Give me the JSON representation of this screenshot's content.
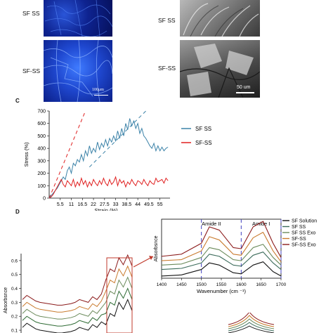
{
  "panel_a": {
    "top_label": "SF SS",
    "bottom_label": "SF-SS",
    "scale_bar": "100μm"
  },
  "panel_b": {
    "top_label": "SF SS",
    "bottom_label": "SF-SS",
    "scale_bar": "50 um"
  },
  "panel_c": {
    "letter": "C"
  },
  "panel_d": {
    "letter": "D"
  },
  "colors": {
    "fluor_bg": "#0a1a6a",
    "fluor_hi": "#3a6cff",
    "sem_bg": "#8a8a8a",
    "sf_ss_line": "#3b82a8",
    "sf_dash_ss_line": "#e02020",
    "box_red": "#c0392b"
  },
  "chart_data": [
    {
      "type": "line",
      "title": "",
      "xlabel": "Strain (%)",
      "ylabel": "Stress (%)",
      "x_ticks": [
        "5.5",
        "11",
        "16.5",
        "22",
        "27.5",
        "33",
        "38.5",
        "44",
        "49.5",
        "55"
      ],
      "xlim": [
        0,
        60
      ],
      "ylim": [
        0,
        700
      ],
      "y_ticks": [
        0,
        100,
        200,
        300,
        400,
        500,
        600,
        700
      ],
      "legend_position": "right",
      "series": [
        {
          "name": "SF SS",
          "color": "#3b82a8",
          "x": [
            0,
            1,
            2,
            3,
            4,
            5,
            6,
            7,
            8,
            9,
            10,
            11,
            12,
            13,
            14,
            15,
            16,
            17,
            18,
            19,
            20,
            21,
            22,
            23,
            24,
            25,
            26,
            27,
            28,
            29,
            30,
            31,
            32,
            33,
            34,
            35,
            36,
            37,
            38,
            39,
            40,
            41,
            42,
            43,
            44,
            45,
            46,
            47,
            48,
            49,
            50,
            51,
            52,
            53,
            54,
            55,
            56,
            57,
            58,
            59
          ],
          "y": [
            0,
            20,
            40,
            60,
            80,
            110,
            140,
            170,
            150,
            220,
            250,
            200,
            280,
            260,
            310,
            290,
            350,
            300,
            380,
            340,
            420,
            360,
            400,
            370,
            450,
            390,
            440,
            410,
            470,
            420,
            480,
            450,
            500,
            460,
            540,
            480,
            560,
            500,
            600,
            550,
            640,
            580,
            620,
            560,
            600,
            520,
            560,
            500,
            480,
            450,
            420,
            400,
            440,
            380,
            420,
            380,
            410,
            380,
            400,
            410
          ]
        },
        {
          "name": "SF-SS",
          "color": "#e02020",
          "x": [
            0,
            1,
            2,
            3,
            4,
            5,
            6,
            7,
            8,
            9,
            10,
            11,
            12,
            13,
            14,
            15,
            16,
            17,
            18,
            19,
            20,
            21,
            22,
            23,
            24,
            25,
            26,
            27,
            28,
            29,
            30,
            31,
            32,
            33,
            34,
            35,
            36,
            37,
            38,
            39,
            40,
            41,
            42,
            43,
            44,
            45,
            46,
            47,
            48,
            49,
            50,
            51,
            52,
            53,
            54,
            55,
            56,
            57,
            58,
            59
          ],
          "y": [
            0,
            10,
            30,
            60,
            90,
            120,
            150,
            110,
            90,
            140,
            120,
            100,
            150,
            90,
            130,
            100,
            160,
            110,
            140,
            90,
            130,
            100,
            150,
            120,
            100,
            140,
            110,
            160,
            120,
            100,
            150,
            110,
            130,
            170,
            100,
            150,
            120,
            140,
            90,
            130,
            110,
            150,
            120,
            100,
            140,
            130,
            110,
            150,
            120,
            100,
            140,
            120,
            110,
            160,
            130,
            140,
            150,
            120,
            160,
            140
          ]
        }
      ],
      "guides": [
        {
          "color": "#e02020",
          "x": [
            0,
            18
          ],
          "y": [
            0,
            700
          ]
        },
        {
          "color": "#3b82a8",
          "x": [
            20,
            48
          ],
          "y": [
            250,
            700
          ]
        }
      ]
    },
    {
      "type": "line",
      "title": "",
      "xlabel": "",
      "ylabel": "Absorbsnce",
      "y_ticks": [
        "0.1",
        "0.2",
        "0.3",
        "0.4",
        "0.5",
        "0.6"
      ],
      "ylim": [
        0.1,
        0.6
      ],
      "series": [
        {
          "name": "SF Solution",
          "color": "#111111"
        },
        {
          "name": "SF SS",
          "color": "#2e6b34"
        },
        {
          "name": "SF SS Exo",
          "color": "#6a8a5a"
        },
        {
          "name": "SF-SS",
          "color": "#c97b2e"
        },
        {
          "name": "SF-SS Exo",
          "color": "#8b1a1a"
        }
      ]
    },
    {
      "type": "line",
      "title": "",
      "xlabel": "Wavenumber (cm ⁻¹)",
      "ylabel": "Absorbsnce",
      "x_ticks": [
        "1400",
        "1450",
        "1500",
        "1550",
        "1600",
        "1650",
        "1700"
      ],
      "xlim": [
        1400,
        1700
      ],
      "annotations": [
        "Amide II",
        "Amide I"
      ],
      "legend": [
        "SF Solution",
        "SF SS",
        "SF SS Exo",
        "SF-SS",
        "SF-SS Exo"
      ],
      "series": [
        {
          "name": "SF Solution",
          "color": "#111111",
          "x": [
            1400,
            1450,
            1500,
            1520,
            1545,
            1580,
            1600,
            1630,
            1655,
            1680,
            1700
          ],
          "y": [
            0.1,
            0.11,
            0.16,
            0.22,
            0.2,
            0.13,
            0.12,
            0.2,
            0.23,
            0.14,
            0.1
          ]
        },
        {
          "name": "SF SS",
          "color": "#3b6b5a",
          "x": [
            1400,
            1450,
            1500,
            1520,
            1545,
            1580,
            1600,
            1630,
            1655,
            1680,
            1700
          ],
          "y": [
            0.16,
            0.17,
            0.22,
            0.3,
            0.28,
            0.2,
            0.19,
            0.29,
            0.32,
            0.22,
            0.16
          ]
        },
        {
          "name": "SF SS Exo",
          "color": "#6a8a5a",
          "x": [
            1400,
            1450,
            1500,
            1520,
            1545,
            1580,
            1600,
            1630,
            1655,
            1680,
            1700
          ],
          "y": [
            0.2,
            0.21,
            0.27,
            0.36,
            0.34,
            0.25,
            0.24,
            0.36,
            0.39,
            0.27,
            0.2
          ]
        },
        {
          "name": "SF-SS",
          "color": "#c97b2e",
          "x": [
            1400,
            1450,
            1500,
            1520,
            1545,
            1580,
            1600,
            1630,
            1655,
            1680,
            1700
          ],
          "y": [
            0.24,
            0.25,
            0.33,
            0.46,
            0.43,
            0.3,
            0.29,
            0.45,
            0.5,
            0.33,
            0.23
          ]
        },
        {
          "name": "SF-SS Exo",
          "color": "#8b1a1a",
          "x": [
            1400,
            1450,
            1500,
            1520,
            1545,
            1580,
            1600,
            1630,
            1655,
            1680,
            1700
          ],
          "y": [
            0.28,
            0.3,
            0.4,
            0.55,
            0.52,
            0.36,
            0.35,
            0.55,
            0.6,
            0.4,
            0.27
          ]
        }
      ]
    }
  ]
}
